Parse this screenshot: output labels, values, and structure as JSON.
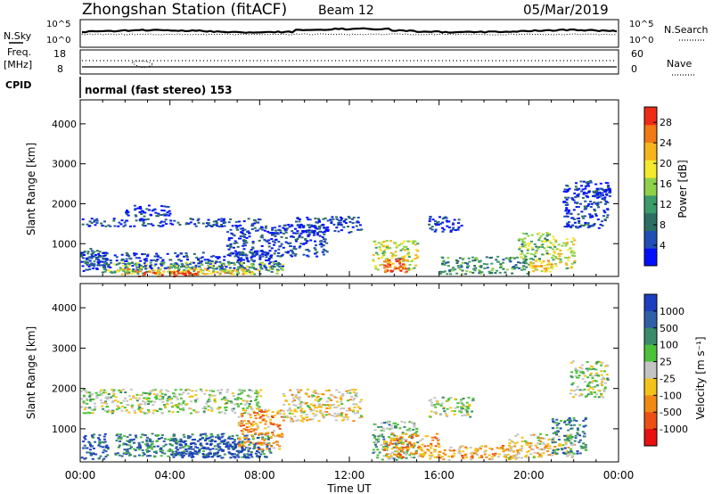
{
  "header": {
    "station": "Zhongshan Station (fitACF)",
    "beam": "Beam 12",
    "date": "05/Mar/2019"
  },
  "params": {
    "nsky_label": "N.Sky",
    "nsky_ticks": [
      "10^5",
      "10^0"
    ],
    "nsearch_label": "N.Search",
    "freq_label_1": "Freq.",
    "freq_label_2": "[MHz]",
    "freq_ticks": [
      "18",
      "8"
    ],
    "nave_label": "Nave",
    "nave_ticks": [
      "60",
      "0"
    ],
    "cpid_label": "CPID",
    "cpid_value": "normal (fast stereo) 153"
  },
  "chart_data": [
    {
      "type": "heatmap",
      "name": "power",
      "ylabel": "Slant Range [km]",
      "xlabel": "Time UT",
      "xticks": [
        "00:00",
        "04:00",
        "08:00",
        "12:00",
        "16:00",
        "20:00",
        "00:00"
      ],
      "xlim_hours": [
        0,
        24
      ],
      "yticks": [
        1000,
        2000,
        3000,
        4000
      ],
      "ylim": [
        180,
        4600
      ],
      "colorbar": {
        "label": "Power [dB]",
        "ticks": [
          4,
          8,
          12,
          16,
          20,
          24,
          28
        ],
        "range": [
          0,
          31
        ],
        "colors": [
          "#0010ff",
          "#1f4fb4",
          "#2d6e62",
          "#3b9b6a",
          "#8fd14a",
          "#f4ea2d",
          "#f6b51c",
          "#f07a16",
          "#ee2c16"
        ]
      },
      "regions": [
        {
          "t": [
            0.0,
            1.2
          ],
          "r": [
            300,
            900
          ],
          "level": 2
        },
        {
          "t": [
            0.0,
            9.0
          ],
          "r": [
            350,
            800
          ],
          "level": 1
        },
        {
          "t": [
            1.0,
            9.0
          ],
          "r": [
            250,
            550
          ],
          "level": 4
        },
        {
          "t": [
            1.5,
            8.0
          ],
          "r": [
            250,
            400
          ],
          "level": 6
        },
        {
          "t": [
            2.5,
            5.5
          ],
          "r": [
            200,
            330
          ],
          "level": 8
        },
        {
          "t": [
            0.0,
            8.0
          ],
          "r": [
            1450,
            1650
          ],
          "level": 1
        },
        {
          "t": [
            1.8,
            4.0
          ],
          "r": [
            1700,
            2000
          ],
          "level": 1
        },
        {
          "t": [
            6.5,
            11.0
          ],
          "r": [
            700,
            1500
          ],
          "level": 1
        },
        {
          "t": [
            9.5,
            12.5
          ],
          "r": [
            1300,
            1700
          ],
          "level": 1
        },
        {
          "t": [
            13.0,
            15.0
          ],
          "r": [
            350,
            1100
          ],
          "level": 5
        },
        {
          "t": [
            13.5,
            14.5
          ],
          "r": [
            300,
            650
          ],
          "level": 8
        },
        {
          "t": [
            15.5,
            17.0
          ],
          "r": [
            1300,
            1700
          ],
          "level": 1
        },
        {
          "t": [
            16.0,
            20.0
          ],
          "r": [
            250,
            700
          ],
          "level": 3
        },
        {
          "t": [
            19.5,
            21.0
          ],
          "r": [
            600,
            1300
          ],
          "level": 4
        },
        {
          "t": [
            20.0,
            21.0
          ],
          "r": [
            300,
            600
          ],
          "level": 6
        },
        {
          "t": [
            21.0,
            22.0
          ],
          "r": [
            400,
            1200
          ],
          "level": 5
        },
        {
          "t": [
            21.5,
            23.5
          ],
          "r": [
            1400,
            2600
          ],
          "level": 1
        },
        {
          "t": [
            22.8,
            23.6
          ],
          "r": [
            2200,
            2400
          ],
          "level": 1
        }
      ]
    },
    {
      "type": "heatmap",
      "name": "velocity",
      "ylabel": "Slant Range [km]",
      "xlabel": "Time UT",
      "xticks": [
        "00:00",
        "04:00",
        "08:00",
        "12:00",
        "16:00",
        "20:00",
        "00:00"
      ],
      "xlim_hours": [
        0,
        24
      ],
      "yticks": [
        1000,
        2000,
        3000,
        4000
      ],
      "ylim": [
        180,
        4600
      ],
      "colorbar": {
        "label": "Velocity [m s⁻¹]",
        "ticks": [
          1000,
          500,
          100,
          25,
          -25,
          -100,
          -500,
          -1000
        ],
        "colors": [
          "#1d3fbf",
          "#2f5fa6",
          "#3a8b6a",
          "#4cc23a",
          "#c4c4c4",
          "#f2c419",
          "#f08a14",
          "#ec5014",
          "#e81010"
        ]
      },
      "regions": [
        {
          "t": [
            0.0,
            1.2
          ],
          "r": [
            250,
            900
          ],
          "level": 1
        },
        {
          "t": [
            1.5,
            8.5
          ],
          "r": [
            300,
            900
          ],
          "level": 2
        },
        {
          "t": [
            4.0,
            8.0
          ],
          "r": [
            300,
            800
          ],
          "level": 0
        },
        {
          "t": [
            0.0,
            8.0
          ],
          "r": [
            1400,
            2000
          ],
          "level": 4
        },
        {
          "t": [
            7.0,
            9.0
          ],
          "r": [
            500,
            1500
          ],
          "level": 6
        },
        {
          "t": [
            9.0,
            12.5
          ],
          "r": [
            1200,
            2000
          ],
          "level": 5
        },
        {
          "t": [
            13.0,
            15.0
          ],
          "r": [
            250,
            1200
          ],
          "level": 3
        },
        {
          "t": [
            13.5,
            16.0
          ],
          "r": [
            300,
            900
          ],
          "level": 6
        },
        {
          "t": [
            15.0,
            19.5
          ],
          "r": [
            250,
            600
          ],
          "level": 6
        },
        {
          "t": [
            15.5,
            17.5
          ],
          "r": [
            1300,
            1800
          ],
          "level": 4
        },
        {
          "t": [
            19.0,
            22.0
          ],
          "r": [
            300,
            900
          ],
          "level": 5
        },
        {
          "t": [
            21.0,
            22.5
          ],
          "r": [
            400,
            1300
          ],
          "level": 2
        },
        {
          "t": [
            21.8,
            23.5
          ],
          "r": [
            1800,
            2700
          ],
          "level": 4
        }
      ]
    }
  ]
}
